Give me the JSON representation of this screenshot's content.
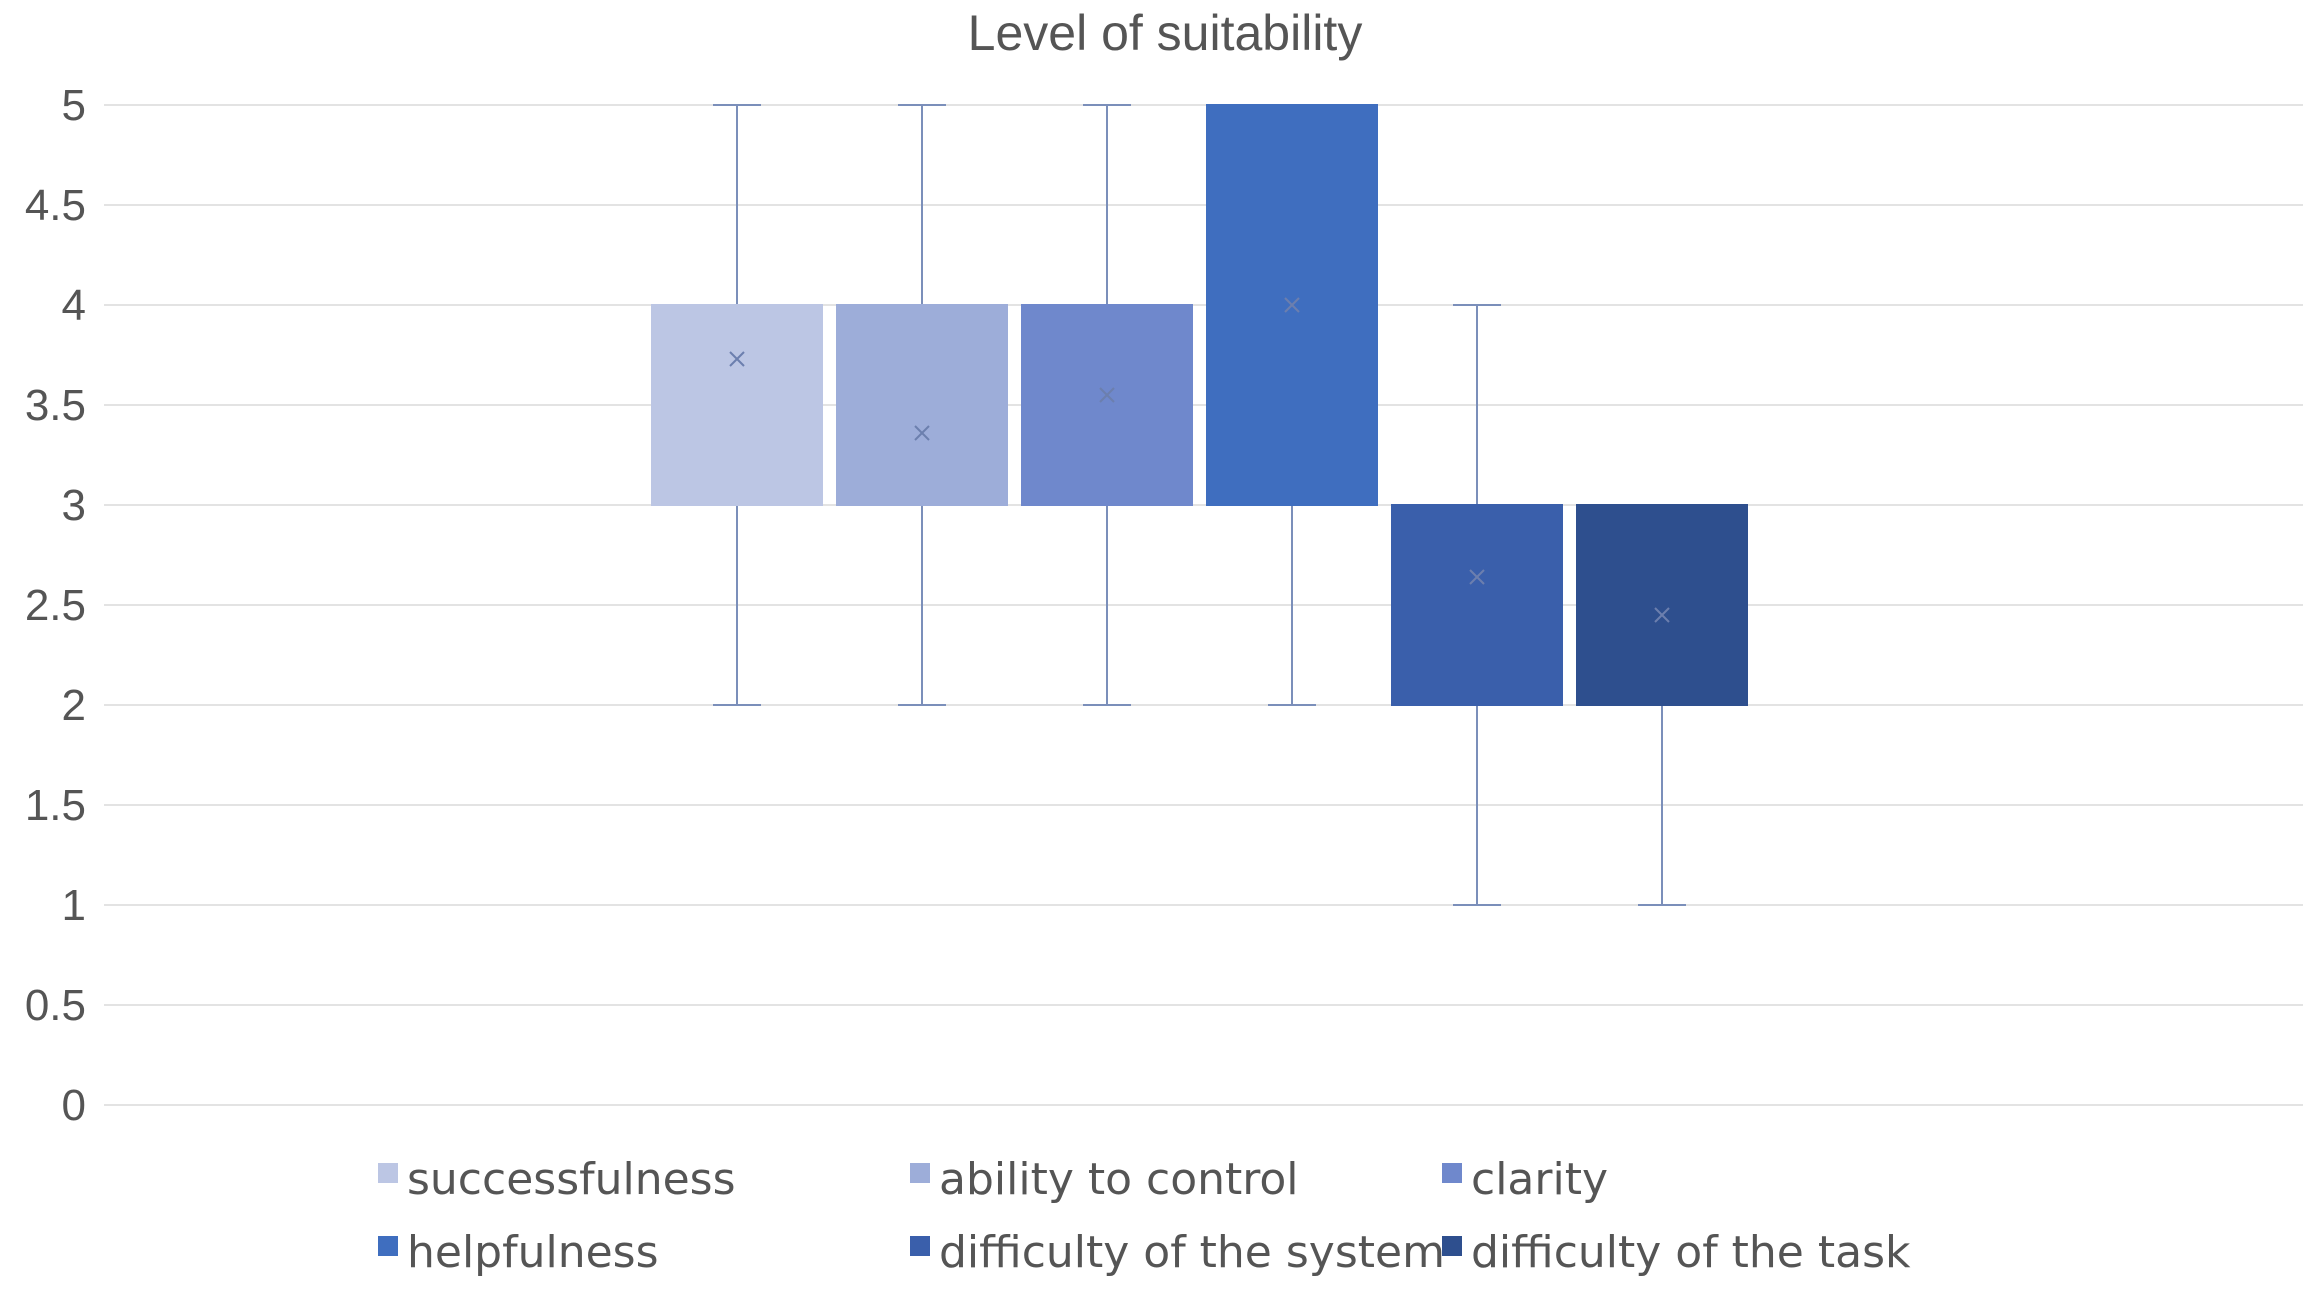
{
  "chart_data": {
    "type": "box",
    "title": "Level of suitability",
    "xlabel": "",
    "ylabel": "",
    "ylim": [
      0,
      5
    ],
    "yticks": [
      "0",
      "0.5",
      "1",
      "1.5",
      "2",
      "2.5",
      "3",
      "3.5",
      "4",
      "4.5",
      "5"
    ],
    "grid": true,
    "legend_position": "bottom",
    "series": [
      {
        "name": "successfulness",
        "min": 2,
        "q1": 3,
        "median": 4,
        "q3": 4,
        "max": 5,
        "mean": 3.73,
        "color": "#bcc6e4"
      },
      {
        "name": "ability to control",
        "min": 2,
        "q1": 3,
        "median": 4,
        "q3": 4,
        "max": 5,
        "mean": 3.36,
        "color": "#9dadd9"
      },
      {
        "name": "clarity",
        "min": 2,
        "q1": 3,
        "median": 4,
        "q3": 4,
        "max": 5,
        "mean": 3.55,
        "color": "#6f88cc"
      },
      {
        "name": "helpfulness",
        "min": 2,
        "q1": 3,
        "median": 4,
        "q3": 5,
        "max": 5,
        "mean": 4.0,
        "color": "#3f6ebf"
      },
      {
        "name": "difficulty of the system",
        "min": 1,
        "q1": 2,
        "median": 3,
        "q3": 3,
        "max": 4,
        "mean": 2.64,
        "color": "#3a5fab"
      },
      {
        "name": "difficulty of the task",
        "min": 1,
        "q1": 2,
        "median": 3,
        "q3": 3,
        "max": 3,
        "mean": 2.45,
        "color": "#2e4f8e"
      }
    ]
  }
}
